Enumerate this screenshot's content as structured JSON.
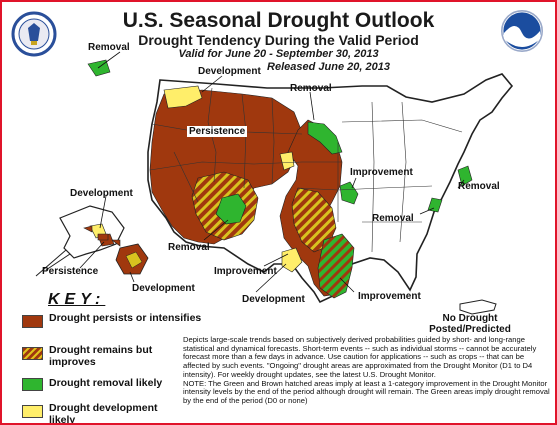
{
  "header": {
    "title": "U.S. Seasonal Drought Outlook",
    "subtitle": "Drought Tendency During the Valid Period",
    "valid": "Valid for June 20 - September 30, 2013",
    "released": "Released June 20, 2013"
  },
  "logos": {
    "left": "us-department-of-commerce-seal",
    "right": "noaa-logo"
  },
  "map_labels": {
    "removal_nw": "Removal",
    "development_top": "Development",
    "removal_north": "Removal",
    "persistence_west": "Persistence",
    "improvement_east": "Improvement",
    "removal_ne": "Removal",
    "removal_east": "Removal",
    "development_ak": "Development",
    "removal_sw": "Removal",
    "improvement_south": "Improvement",
    "persistence_hi": "Persistence",
    "development_hi": "Development",
    "development_tx": "Development",
    "improvement_se": "Improvement"
  },
  "key": {
    "title": "KEY:",
    "items": [
      {
        "label": "Drought persists or intensifies",
        "color": "#a0380e"
      },
      {
        "label": "Drought remains but improves",
        "color": "#a0380e",
        "hatch": "#e0c31c"
      },
      {
        "label": "Drought removal likely",
        "color": "#2fb52f"
      },
      {
        "label": "Drought development likely",
        "color": "#ffee6a"
      }
    ]
  },
  "no_drought": "No Drought Posted/Predicted",
  "notes": [
    "Depicts large-scale trends based on subjectively derived probabilities guided by short- and long-range statistical and dynamical forecasts. Short-term events -- such as individual storms -- cannot be accurately forecast more than a few days in advance. Use caution for applications -- such as crops -- that can be affected by such events. \"Ongoing\" drought areas are approximated from the Drought Monitor (D1 to D4 intensity). For weekly drought updates, see the latest U.S. Drought Monitor.",
    "NOTE: The Green and Brown hatched areas imply at least a 1-category improvement in the Drought Monitor intensity levels by the end of the period although drought will remain. The Green areas imply drought removal by the end of the period (D0 or none)"
  ]
}
